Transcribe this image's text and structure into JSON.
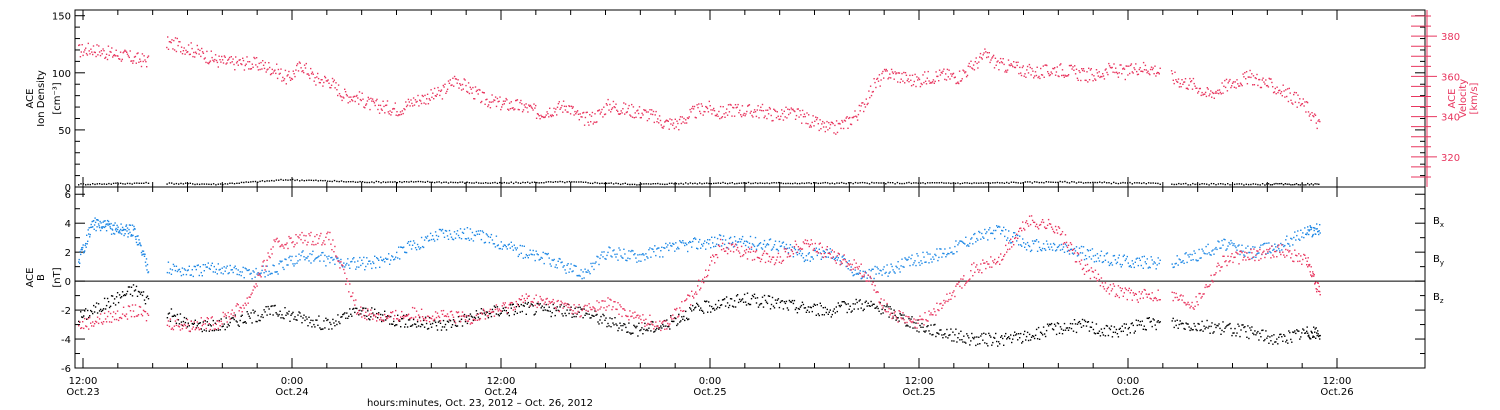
{
  "colors": {
    "black": "#000000",
    "red": "#e8365f",
    "blue": "#1e88e5"
  },
  "chart_data": [
    {
      "type": "scatter",
      "panel": "top",
      "left_ylabel_lines": [
        "ACE",
        "Ion Density"
      ],
      "left_unit": "[cm⁻³]",
      "right_ylabel_lines": [
        "ACE",
        "Velocity"
      ],
      "right_unit": "[km/s]",
      "ylim_left": [
        0,
        155
      ],
      "yticks_left": [
        0,
        50,
        100,
        150
      ],
      "ylim_right": [
        305,
        393
      ],
      "yticks_right": [
        320,
        340,
        360,
        380
      ],
      "series": [
        {
          "axis": "right",
          "color": "#e8365f",
          "points": [
            [
              0,
              373
            ],
            [
              1,
              374
            ],
            [
              2,
              372
            ],
            [
              3,
              371
            ],
            [
              4,
              369
            ],
            [
              5,
              368
            ],
            [
              6,
              377
            ],
            [
              7,
              376
            ],
            [
              8,
              374
            ],
            [
              9,
              371
            ],
            [
              10,
              368
            ],
            [
              11,
              367
            ],
            [
              12,
              367
            ],
            [
              13,
              366
            ],
            [
              14,
              364
            ],
            [
              15,
              359
            ],
            [
              16,
              366
            ],
            [
              17,
              359
            ],
            [
              18,
              358
            ],
            [
              19,
              351
            ],
            [
              20,
              350
            ],
            [
              21,
              346
            ],
            [
              22,
              345
            ],
            [
              23,
              344
            ],
            [
              24,
              348
            ],
            [
              25,
              350
            ],
            [
              26,
              352
            ],
            [
              27,
              359
            ],
            [
              28,
              354
            ],
            [
              29,
              349
            ],
            [
              30,
              347
            ],
            [
              31,
              346
            ],
            [
              32,
              345
            ],
            [
              33,
              342
            ],
            [
              34,
              344
            ],
            [
              35,
              346
            ],
            [
              36,
              339
            ],
            [
              37,
              340
            ],
            [
              38,
              346
            ],
            [
              39,
              344
            ],
            [
              40,
              343
            ],
            [
              41,
              341
            ],
            [
              42,
              337
            ],
            [
              43,
              337
            ],
            [
              44,
              342
            ],
            [
              45,
              345
            ],
            [
              46,
              342
            ],
            [
              47,
              344
            ],
            [
              48,
              343
            ],
            [
              49,
              343
            ],
            [
              50,
              341
            ],
            [
              51,
              342
            ],
            [
              52,
              340
            ],
            [
              53,
              336
            ],
            [
              54,
              334
            ],
            [
              55,
              337
            ],
            [
              56,
              343
            ],
            [
              57,
              356
            ],
            [
              58,
              362
            ],
            [
              59,
              360
            ],
            [
              60,
              358
            ],
            [
              61,
              360
            ],
            [
              62,
              361
            ],
            [
              63,
              360
            ],
            [
              64,
              365
            ],
            [
              65,
              371
            ],
            [
              66,
              366
            ],
            [
              67,
              365
            ],
            [
              68,
              363
            ],
            [
              69,
              362
            ],
            [
              70,
              364
            ],
            [
              71,
              363
            ],
            [
              72,
              361
            ],
            [
              73,
              361
            ],
            [
              74,
              364
            ],
            [
              75,
              362
            ],
            [
              76,
              365
            ],
            [
              77,
              364
            ],
            [
              78,
              361
            ],
            [
              79,
              358
            ],
            [
              80,
              356
            ],
            [
              81,
              351
            ],
            [
              82,
              355
            ],
            [
              83,
              358
            ],
            [
              84,
              360
            ],
            [
              85,
              357
            ],
            [
              86,
              354
            ],
            [
              87,
              350
            ],
            [
              88,
              345
            ],
            [
              89,
              335
            ]
          ]
        },
        {
          "axis": "left",
          "color": "#000000",
          "points": [
            [
              0,
              3
            ],
            [
              5,
              4
            ],
            [
              10,
              3
            ],
            [
              15,
              7
            ],
            [
              20,
              5
            ],
            [
              25,
              5
            ],
            [
              30,
              4
            ],
            [
              35,
              5
            ],
            [
              40,
              3
            ],
            [
              45,
              4
            ],
            [
              50,
              4
            ],
            [
              55,
              4
            ],
            [
              60,
              4
            ],
            [
              65,
              4
            ],
            [
              70,
              5
            ],
            [
              75,
              4
            ],
            [
              80,
              3
            ],
            [
              85,
              3
            ],
            [
              89,
              3
            ]
          ]
        }
      ]
    },
    {
      "type": "scatter",
      "panel": "bottom",
      "ylabel_lines": [
        "ACE",
        "B"
      ],
      "unit": "[nT]",
      "ylim": [
        -6,
        6.5
      ],
      "yticks": [
        -6,
        -4,
        -2,
        0,
        2,
        4,
        6
      ],
      "legend": [
        "Bx",
        "By",
        "Bz"
      ],
      "legend_base": [
        "B",
        "B",
        "B"
      ],
      "legend_sub": [
        "x",
        "y",
        "z"
      ],
      "series": [
        {
          "name": "Bx",
          "color": "#000000",
          "points": [
            [
              0,
              -2.5
            ],
            [
              2,
              -1.5
            ],
            [
              4,
              -0.5
            ],
            [
              6,
              -2
            ],
            [
              8,
              -3
            ],
            [
              10,
              -3
            ],
            [
              12,
              -2.5
            ],
            [
              14,
              -2
            ],
            [
              16,
              -2.5
            ],
            [
              18,
              -3
            ],
            [
              20,
              -2
            ],
            [
              22,
              -2.5
            ],
            [
              24,
              -2.8
            ],
            [
              26,
              -3
            ],
            [
              28,
              -2.5
            ],
            [
              30,
              -2
            ],
            [
              32,
              -1.8
            ],
            [
              34,
              -2
            ],
            [
              36,
              -2
            ],
            [
              38,
              -2.8
            ],
            [
              40,
              -3.3
            ],
            [
              42,
              -3
            ],
            [
              44,
              -2
            ],
            [
              46,
              -1.5
            ],
            [
              48,
              -1.2
            ],
            [
              50,
              -1.5
            ],
            [
              52,
              -1.8
            ],
            [
              54,
              -2
            ],
            [
              56,
              -1.5
            ],
            [
              58,
              -2
            ],
            [
              60,
              -3
            ],
            [
              62,
              -3.5
            ],
            [
              64,
              -4
            ],
            [
              66,
              -4
            ],
            [
              68,
              -3.8
            ],
            [
              70,
              -3.2
            ],
            [
              72,
              -3
            ],
            [
              74,
              -3.5
            ],
            [
              76,
              -3
            ],
            [
              78,
              -2.8
            ],
            [
              80,
              -3
            ],
            [
              82,
              -3.2
            ],
            [
              84,
              -3.5
            ],
            [
              86,
              -4
            ],
            [
              88,
              -3.5
            ],
            [
              89,
              -3.6
            ]
          ]
        },
        {
          "name": "By",
          "color": "#1e88e5",
          "points": [
            [
              0,
              1.5
            ],
            [
              1,
              4
            ],
            [
              2,
              3.8
            ],
            [
              3,
              3.6
            ],
            [
              4,
              3.5
            ],
            [
              5,
              1
            ],
            [
              6,
              1
            ],
            [
              8,
              0.7
            ],
            [
              10,
              1
            ],
            [
              12,
              0.6
            ],
            [
              14,
              0.8
            ],
            [
              16,
              1.8
            ],
            [
              18,
              1.5
            ],
            [
              20,
              1.2
            ],
            [
              22,
              1.5
            ],
            [
              24,
              2.5
            ],
            [
              26,
              3.4
            ],
            [
              28,
              3.3
            ],
            [
              30,
              2.8
            ],
            [
              32,
              2
            ],
            [
              34,
              1.4
            ],
            [
              36,
              0.5
            ],
            [
              38,
              2
            ],
            [
              40,
              1.8
            ],
            [
              42,
              2.2
            ],
            [
              44,
              2.6
            ],
            [
              46,
              2.8
            ],
            [
              48,
              2.7
            ],
            [
              50,
              2.6
            ],
            [
              52,
              1.8
            ],
            [
              54,
              2
            ],
            [
              56,
              0.5
            ],
            [
              58,
              0.8
            ],
            [
              60,
              1.5
            ],
            [
              62,
              2
            ],
            [
              64,
              3
            ],
            [
              66,
              3.5
            ],
            [
              68,
              2.5
            ],
            [
              70,
              2.4
            ],
            [
              72,
              2
            ],
            [
              74,
              1.5
            ],
            [
              76,
              1.4
            ],
            [
              78,
              1.2
            ],
            [
              80,
              1.8
            ],
            [
              82,
              2.6
            ],
            [
              84,
              2
            ],
            [
              86,
              2.5
            ],
            [
              88,
              3.5
            ],
            [
              89,
              3.6
            ]
          ]
        },
        {
          "name": "Bz",
          "color": "#e8365f",
          "points": [
            [
              0,
              -3
            ],
            [
              2,
              -2.5
            ],
            [
              4,
              -2
            ],
            [
              6,
              -2.8
            ],
            [
              8,
              -3
            ],
            [
              10,
              -2.8
            ],
            [
              12,
              -1.5
            ],
            [
              14,
              2.5
            ],
            [
              16,
              3
            ],
            [
              18,
              3
            ],
            [
              20,
              -2
            ],
            [
              22,
              -2.5
            ],
            [
              24,
              -2.2
            ],
            [
              26,
              -2.4
            ],
            [
              28,
              -2.5
            ],
            [
              30,
              -2
            ],
            [
              32,
              -1.2
            ],
            [
              34,
              -1.5
            ],
            [
              36,
              -2
            ],
            [
              38,
              -1.5
            ],
            [
              40,
              -2.5
            ],
            [
              42,
              -3
            ],
            [
              44,
              -1
            ],
            [
              46,
              2.5
            ],
            [
              48,
              2
            ],
            [
              50,
              1.5
            ],
            [
              52,
              2.8
            ],
            [
              54,
              1.8
            ],
            [
              56,
              1
            ],
            [
              58,
              -2
            ],
            [
              60,
              -3
            ],
            [
              62,
              -1.5
            ],
            [
              64,
              0.8
            ],
            [
              66,
              1.5
            ],
            [
              68,
              4.2
            ],
            [
              70,
              3.8
            ],
            [
              72,
              1
            ],
            [
              74,
              -0.5
            ],
            [
              76,
              -1
            ],
            [
              78,
              -0.8
            ],
            [
              80,
              -1.5
            ],
            [
              82,
              1.5
            ],
            [
              84,
              1.8
            ],
            [
              86,
              2.2
            ],
            [
              88,
              1.5
            ],
            [
              89,
              -1
            ]
          ]
        }
      ]
    }
  ],
  "xaxis": {
    "ticks": [
      {
        "time": "12:00",
        "date": "Oct.23"
      },
      {
        "time": "0:00",
        "date": "Oct.24"
      },
      {
        "time": "12:00",
        "date": "Oct.24"
      },
      {
        "time": "0:00",
        "date": "Oct.25"
      },
      {
        "time": "12:00",
        "date": "Oct.25"
      },
      {
        "time": "0:00",
        "date": "Oct.26"
      },
      {
        "time": "12:00",
        "date": "Oct.26"
      }
    ],
    "title": "hours:minutes, Oct. 23, 2012 – Oct. 26, 2012"
  }
}
